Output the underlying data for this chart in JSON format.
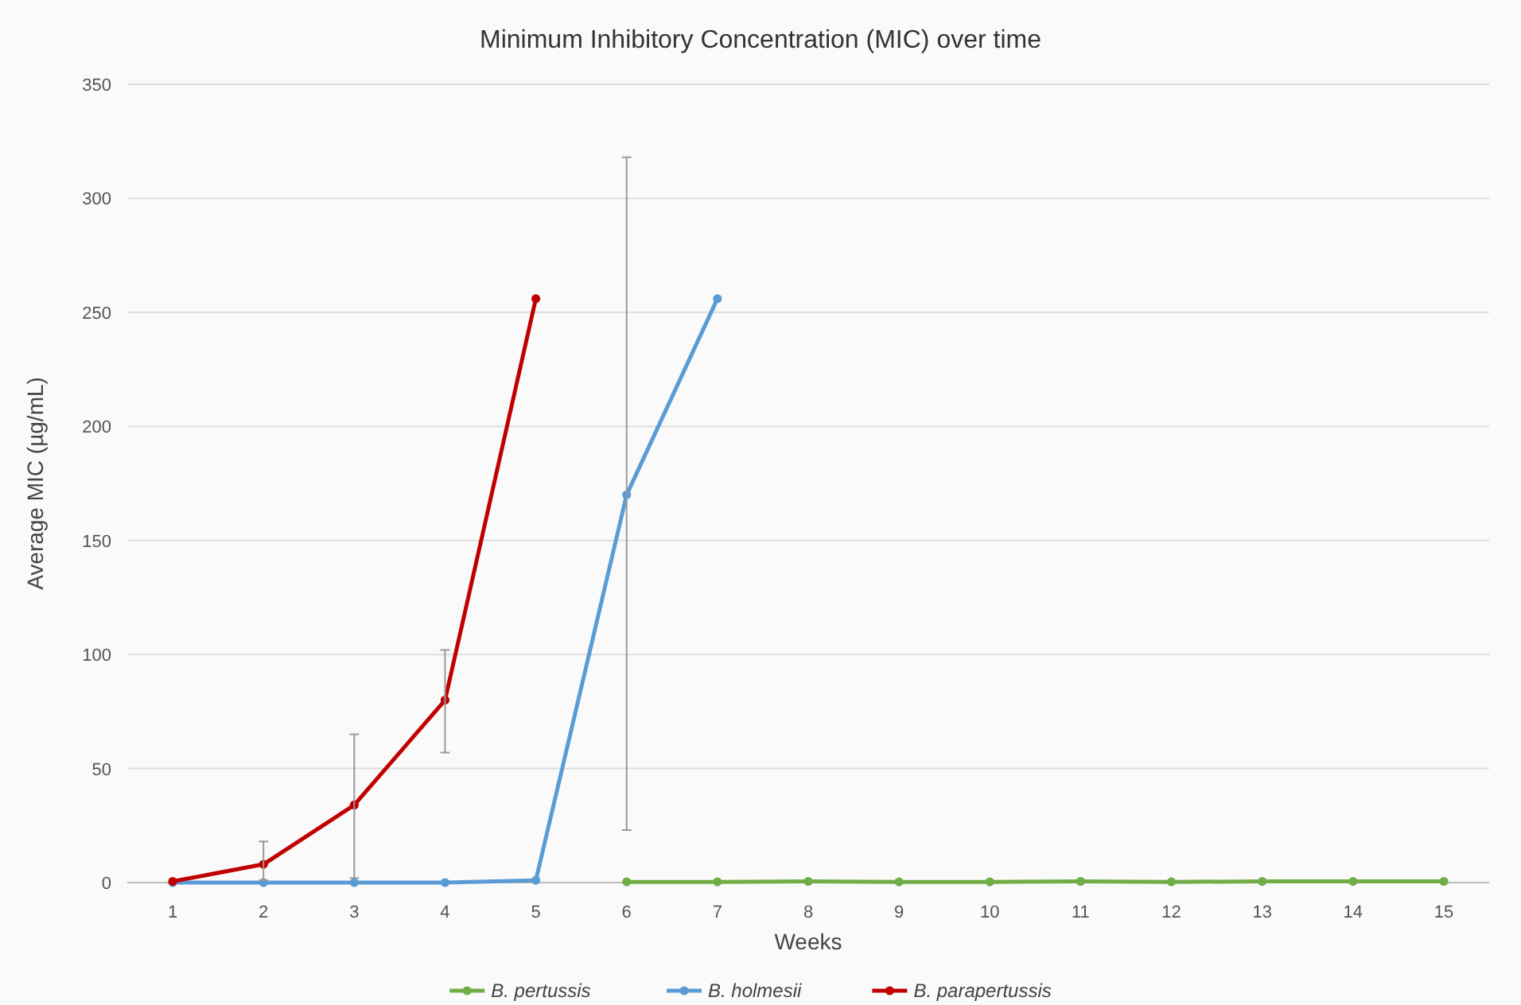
{
  "chart_data": {
    "type": "line",
    "title": "Minimum Inhibitory Concentration (MIC) over time",
    "xlabel": "Weeks",
    "ylabel": "Average MIC (µg/mL)",
    "x": [
      1,
      2,
      3,
      4,
      5,
      6,
      7,
      8,
      9,
      10,
      11,
      12,
      13,
      14,
      15
    ],
    "xlim": [
      0.5,
      15.5
    ],
    "xticks": [
      1,
      2,
      3,
      4,
      5,
      6,
      7,
      8,
      9,
      10,
      11,
      12,
      13,
      14,
      15
    ],
    "series": [
      {
        "name": "B. pertussis",
        "color": "#70ad47",
        "values": [
          null,
          null,
          null,
          null,
          null,
          0.3,
          0.3,
          0.5,
          0.3,
          0.3,
          0.5,
          0.3,
          0.5,
          0.5,
          0.5
        ]
      },
      {
        "name": "B. holmesii",
        "color": "#5b9bd5",
        "values": [
          0,
          0,
          0,
          0,
          1,
          170,
          256,
          null,
          null,
          null,
          null,
          null,
          null,
          null,
          null
        ],
        "errors": [
          null,
          null,
          null,
          null,
          null,
          [
            23,
            318
          ],
          null,
          null,
          null,
          null,
          null,
          null,
          null,
          null,
          null
        ]
      },
      {
        "name": "B. parapertussis",
        "color": "#c00000",
        "values": [
          0.5,
          8,
          34,
          80,
          256,
          null,
          null,
          null,
          null,
          null,
          null,
          null,
          null,
          null,
          null
        ],
        "errors": [
          null,
          [
            1,
            18
          ],
          [
            2,
            65
          ],
          [
            57,
            102
          ],
          null,
          null,
          null,
          null,
          null,
          null,
          null,
          null,
          null,
          null,
          null
        ]
      }
    ],
    "ylim": [
      0,
      350
    ],
    "yticks": [
      0,
      50,
      100,
      150,
      200,
      250,
      300,
      350
    ],
    "grid": "y",
    "legend": "bottom",
    "marker": "circle",
    "line_style": "solid"
  }
}
